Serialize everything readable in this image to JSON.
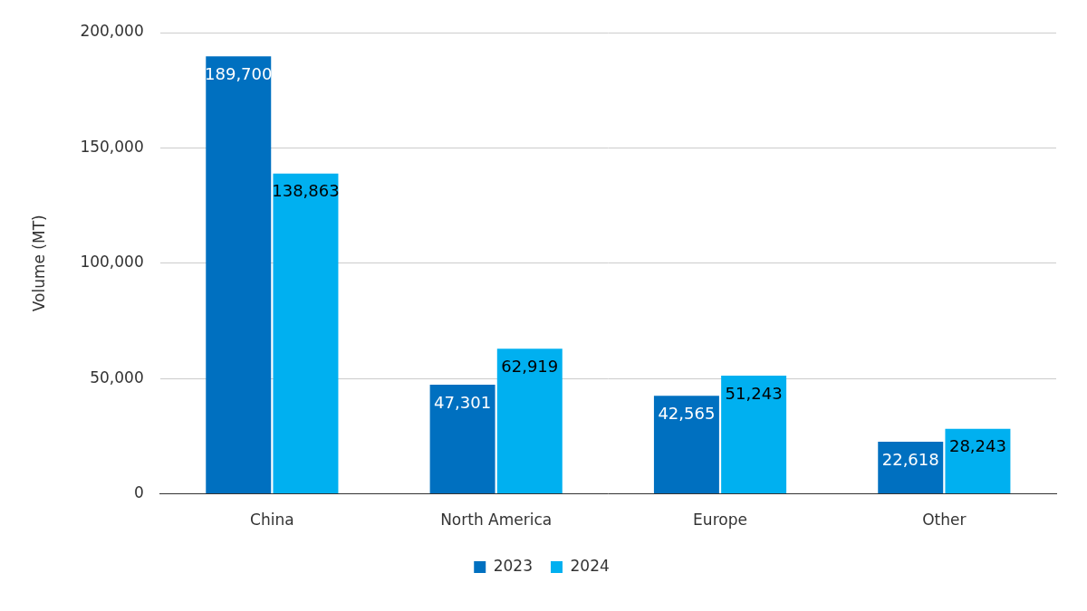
{
  "chart_data": {
    "type": "bar",
    "categories": [
      "China",
      "North America",
      "Europe",
      "Other"
    ],
    "series": [
      {
        "name": "2023",
        "color": "#0070c0",
        "values": [
          189700,
          47301,
          42565,
          22618
        ],
        "value_labels": [
          "189,700",
          "47,301",
          "42,565",
          "22,618"
        ]
      },
      {
        "name": "2024",
        "color": "#00b0f0",
        "values": [
          138863,
          62919,
          51243,
          28243
        ],
        "value_labels": [
          "138,863",
          "62,919",
          "51,243",
          "28,243"
        ]
      }
    ],
    "y_label": "Volume (MT)",
    "ylim": [
      0,
      200000
    ],
    "yticks": [
      0,
      {
        "value": 50000,
        "label": "50,000"
      },
      {
        "value": 100000,
        "label": "100,000"
      },
      {
        "value": 150000,
        "label": "150,000"
      },
      {
        "value": 200000,
        "label": "200,000"
      }
    ],
    "grid": true,
    "legend": "bottom",
    "data_labels": true
  }
}
